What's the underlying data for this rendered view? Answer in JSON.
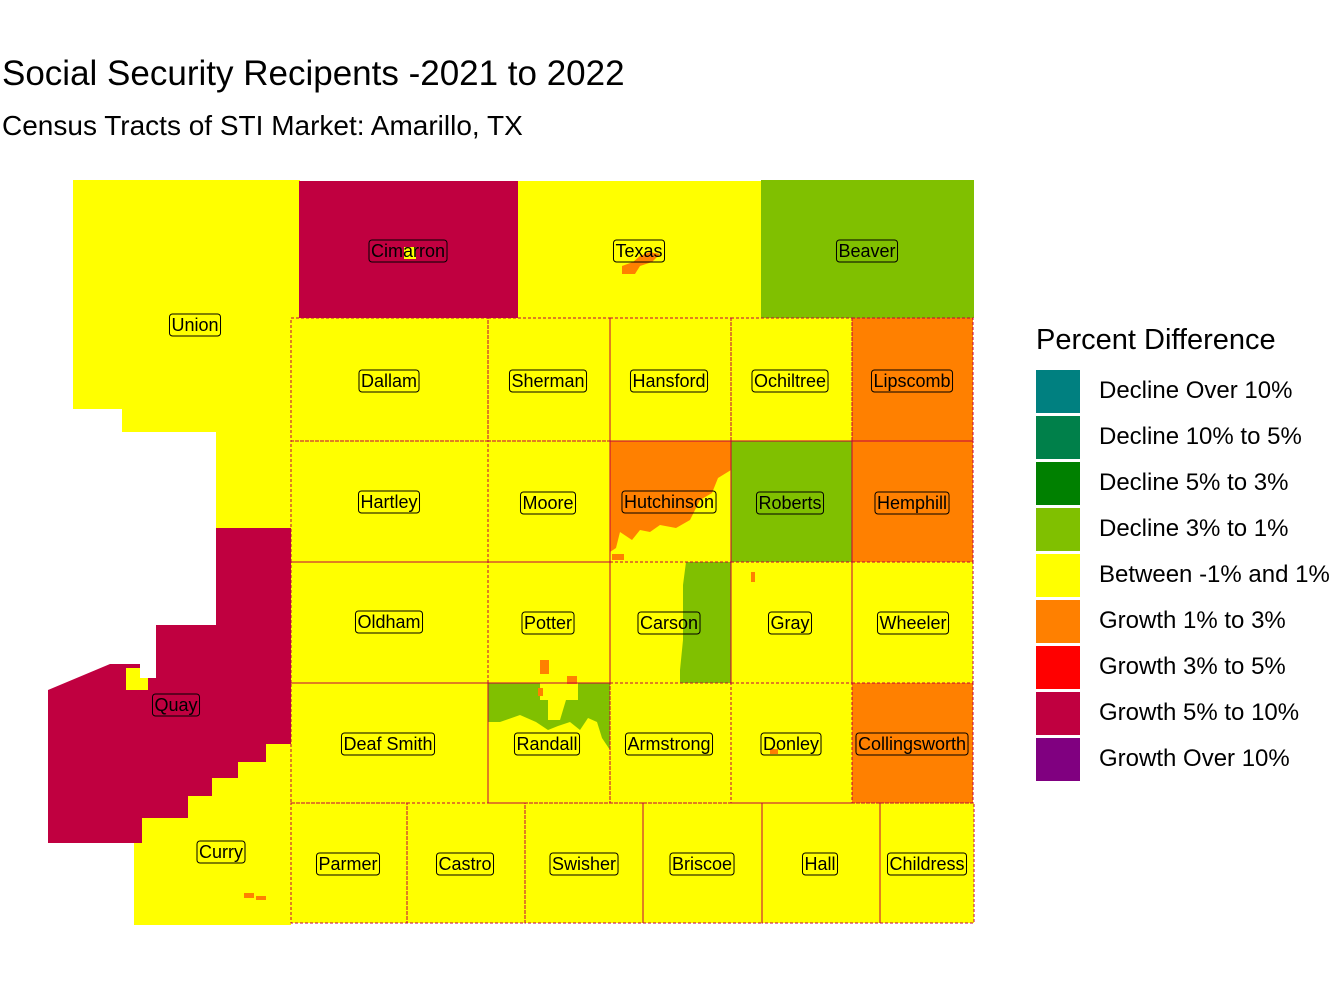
{
  "title": "Social Security Recipents -2021 to 2022",
  "subtitle": "Census Tracts of STI Market: Amarillo, TX",
  "legend": {
    "title": "Percent Difference",
    "items": [
      {
        "label": "Decline Over 10%",
        "color": "#008080"
      },
      {
        "label": "Decline 10% to 5%",
        "color": "#00804A"
      },
      {
        "label": "Decline 5% to 3%",
        "color": "#008000"
      },
      {
        "label": "Decline 3% to 1%",
        "color": "#80C000"
      },
      {
        "label": "Between -1% and 1%",
        "color": "#FFFF00"
      },
      {
        "label": "Growth 1% to 3%",
        "color": "#FF8000"
      },
      {
        "label": "Growth 3% to 5%",
        "color": "#FF0000"
      },
      {
        "label": "Growth 5% to 10%",
        "color": "#C00040"
      },
      {
        "label": "Growth Over 10%",
        "color": "#800080"
      }
    ]
  },
  "counties": [
    {
      "name": "Union",
      "category": "Between -1% and 1%"
    },
    {
      "name": "Cimarron",
      "category": "Growth 5% to 10%"
    },
    {
      "name": "Texas",
      "category": "Between -1% and 1%"
    },
    {
      "name": "Beaver",
      "category": "Decline 3% to 1%"
    },
    {
      "name": "Dallam",
      "category": "Between -1% and 1%"
    },
    {
      "name": "Sherman",
      "category": "Between -1% and 1%"
    },
    {
      "name": "Hansford",
      "category": "Between -1% and 1%"
    },
    {
      "name": "Ochiltree",
      "category": "Between -1% and 1%"
    },
    {
      "name": "Lipscomb",
      "category": "Growth 1% to 3%"
    },
    {
      "name": "Hartley",
      "category": "Between -1% and 1%"
    },
    {
      "name": "Moore",
      "category": "Between -1% and 1%"
    },
    {
      "name": "Hutchinson",
      "category": "Growth 1% to 3%"
    },
    {
      "name": "Roberts",
      "category": "Decline 3% to 1%"
    },
    {
      "name": "Hemphill",
      "category": "Growth 1% to 3%"
    },
    {
      "name": "Quay",
      "category": "Growth 5% to 10%"
    },
    {
      "name": "Oldham",
      "category": "Between -1% and 1%"
    },
    {
      "name": "Potter",
      "category": "Between -1% and 1%"
    },
    {
      "name": "Carson",
      "category": "Between -1% and 1%"
    },
    {
      "name": "Gray",
      "category": "Between -1% and 1%"
    },
    {
      "name": "Wheeler",
      "category": "Between -1% and 1%"
    },
    {
      "name": "Deaf Smith",
      "category": "Between -1% and 1%"
    },
    {
      "name": "Randall",
      "category": "Between -1% and 1%"
    },
    {
      "name": "Armstrong",
      "category": "Between -1% and 1%"
    },
    {
      "name": "Donley",
      "category": "Between -1% and 1%"
    },
    {
      "name": "Collingsworth",
      "category": "Growth 1% to 3%"
    },
    {
      "name": "Curry",
      "category": "Between -1% and 1%"
    },
    {
      "name": "Parmer",
      "category": "Between -1% and 1%"
    },
    {
      "name": "Castro",
      "category": "Between -1% and 1%"
    },
    {
      "name": "Swisher",
      "category": "Between -1% and 1%"
    },
    {
      "name": "Briscoe",
      "category": "Between -1% and 1%"
    },
    {
      "name": "Hall",
      "category": "Between -1% and 1%"
    },
    {
      "name": "Childress",
      "category": "Between -1% and 1%"
    }
  ]
}
